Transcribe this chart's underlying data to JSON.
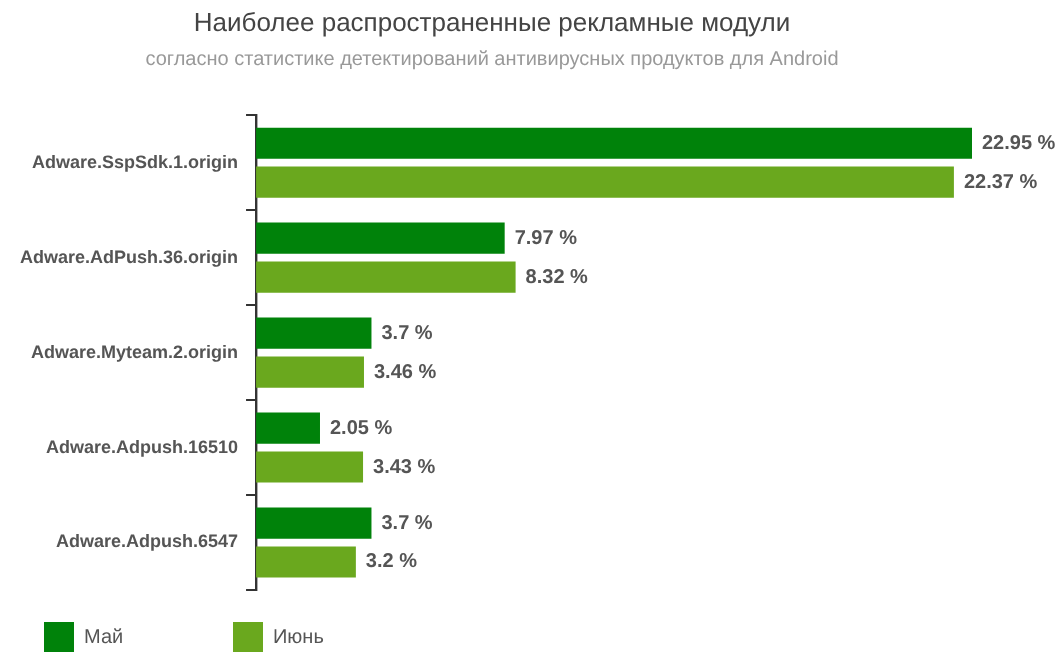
{
  "chart_data": {
    "type": "bar",
    "orientation": "horizontal",
    "title": "Наиболее распространенные рекламные модули",
    "subtitle": "согласно статистике детектирований антивирусных продуктов для Android",
    "categories": [
      "Adware.SspSdk.1.origin",
      "Adware.AdPush.36.origin",
      "Adware.Myteam.2.origin",
      "Adware.Adpush.16510",
      "Adware.Adpush.6547"
    ],
    "series": [
      {
        "name": "Май",
        "color": "#00820a",
        "values": [
          22.95,
          7.97,
          3.7,
          2.05,
          3.7
        ],
        "value_labels": [
          "22.95 %",
          "7.97 %",
          "3.7 %",
          "2.05 %",
          "3.7 %"
        ]
      },
      {
        "name": "Июнь",
        "color": "#6aa81e",
        "values": [
          22.37,
          8.32,
          3.46,
          3.43,
          3.2
        ],
        "value_labels": [
          "22.37 %",
          "8.32 %",
          "3.46 %",
          "3.43 %",
          "3.2 %"
        ]
      }
    ],
    "legend": "bottom left",
    "tick_labels": "y"
  }
}
